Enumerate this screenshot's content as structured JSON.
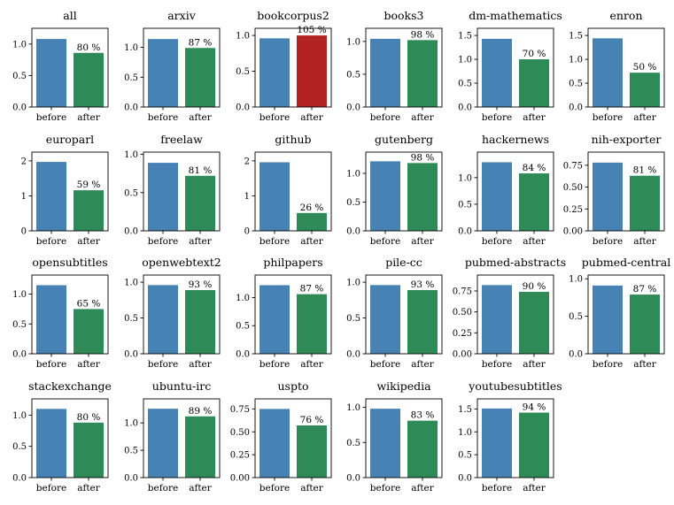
{
  "chart_data": [
    {
      "type": "bar",
      "title": "all",
      "categories": [
        "before",
        "after"
      ],
      "values": [
        1.08,
        0.86
      ],
      "label": "80 %",
      "ylim": [
        0,
        1.25
      ],
      "yticks": [
        0.0,
        0.5,
        1.0
      ],
      "after_color": "#2e8b57"
    },
    {
      "type": "bar",
      "title": "arxiv",
      "categories": [
        "before",
        "after"
      ],
      "values": [
        1.14,
        0.99
      ],
      "label": "87 %",
      "ylim": [
        0,
        1.32
      ],
      "yticks": [
        0.0,
        0.5,
        1.0
      ],
      "after_color": "#2e8b57"
    },
    {
      "type": "bar",
      "title": "bookcorpus2",
      "categories": [
        "before",
        "after"
      ],
      "values": [
        0.96,
        1.0
      ],
      "label": "105 %",
      "ylim": [
        0,
        1.1
      ],
      "yticks": [
        0.0,
        0.5,
        1.0
      ],
      "after_color": "#b22222"
    },
    {
      "type": "bar",
      "title": "books3",
      "categories": [
        "before",
        "after"
      ],
      "values": [
        1.04,
        1.02
      ],
      "label": "98 %",
      "ylim": [
        0,
        1.2
      ],
      "yticks": [
        0.0,
        0.5,
        1.0
      ],
      "after_color": "#2e8b57"
    },
    {
      "type": "bar",
      "title": "dm-mathematics",
      "categories": [
        "before",
        "after"
      ],
      "values": [
        1.43,
        1.0
      ],
      "label": "70 %",
      "ylim": [
        0,
        1.65
      ],
      "yticks": [
        0.0,
        0.5,
        1.0,
        1.5
      ],
      "after_color": "#2e8b57"
    },
    {
      "type": "bar",
      "title": "enron",
      "categories": [
        "before",
        "after"
      ],
      "values": [
        1.44,
        0.72
      ],
      "label": "50 %",
      "ylim": [
        0,
        1.65
      ],
      "yticks": [
        0.0,
        0.5,
        1.0,
        1.5
      ],
      "after_color": "#2e8b57"
    },
    {
      "type": "bar",
      "title": "europarl",
      "categories": [
        "before",
        "after"
      ],
      "values": [
        1.97,
        1.16
      ],
      "label": "59 %",
      "ylim": [
        0,
        2.25
      ],
      "yticks": [
        0,
        1,
        2
      ],
      "after_color": "#2e8b57"
    },
    {
      "type": "bar",
      "title": "freelaw",
      "categories": [
        "before",
        "after"
      ],
      "values": [
        0.89,
        0.72
      ],
      "label": "81 %",
      "ylim": [
        0,
        1.03
      ],
      "yticks": [
        0.0,
        0.5,
        1.0
      ],
      "after_color": "#2e8b57"
    },
    {
      "type": "bar",
      "title": "github",
      "categories": [
        "before",
        "after"
      ],
      "values": [
        1.96,
        0.51
      ],
      "label": "26 %",
      "ylim": [
        0,
        2.25
      ],
      "yticks": [
        0,
        1,
        2
      ],
      "after_color": "#2e8b57"
    },
    {
      "type": "bar",
      "title": "gutenberg",
      "categories": [
        "before",
        "after"
      ],
      "values": [
        1.21,
        1.18
      ],
      "label": "98 %",
      "ylim": [
        0,
        1.37
      ],
      "yticks": [
        0.0,
        0.5,
        1.0
      ],
      "after_color": "#2e8b57"
    },
    {
      "type": "bar",
      "title": "hackernews",
      "categories": [
        "before",
        "after"
      ],
      "values": [
        1.29,
        1.08
      ],
      "label": "84 %",
      "ylim": [
        0,
        1.48
      ],
      "yticks": [
        0.0,
        0.5,
        1.0
      ],
      "after_color": "#2e8b57"
    },
    {
      "type": "bar",
      "title": "nih-exporter",
      "categories": [
        "before",
        "after"
      ],
      "values": [
        0.78,
        0.63
      ],
      "label": "81 %",
      "ylim": [
        0,
        0.9
      ],
      "yticks": [
        0.0,
        0.25,
        0.5,
        0.75
      ],
      "after_color": "#2e8b57"
    },
    {
      "type": "bar",
      "title": "opensubtitles",
      "categories": [
        "before",
        "after"
      ],
      "values": [
        1.15,
        0.75
      ],
      "label": "65 %",
      "ylim": [
        0,
        1.32
      ],
      "yticks": [
        0.0,
        0.5,
        1.0
      ],
      "after_color": "#2e8b57"
    },
    {
      "type": "bar",
      "title": "openwebtext2",
      "categories": [
        "before",
        "after"
      ],
      "values": [
        0.96,
        0.89
      ],
      "label": "93 %",
      "ylim": [
        0,
        1.1
      ],
      "yticks": [
        0.0,
        0.5,
        1.0
      ],
      "after_color": "#2e8b57"
    },
    {
      "type": "bar",
      "title": "philpapers",
      "categories": [
        "before",
        "after"
      ],
      "values": [
        1.22,
        1.06
      ],
      "label": "87 %",
      "ylim": [
        0,
        1.4
      ],
      "yticks": [
        0.0,
        0.5,
        1.0
      ],
      "after_color": "#2e8b57"
    },
    {
      "type": "bar",
      "title": "pile-cc",
      "categories": [
        "before",
        "after"
      ],
      "values": [
        0.96,
        0.89
      ],
      "label": "93 %",
      "ylim": [
        0,
        1.1
      ],
      "yticks": [
        0.0,
        0.5,
        1.0
      ],
      "after_color": "#2e8b57"
    },
    {
      "type": "bar",
      "title": "pubmed-abstracts",
      "categories": [
        "before",
        "after"
      ],
      "values": [
        0.82,
        0.74
      ],
      "label": "90 %",
      "ylim": [
        0,
        0.94
      ],
      "yticks": [
        0.0,
        0.25,
        0.5,
        0.75
      ],
      "after_color": "#2e8b57"
    },
    {
      "type": "bar",
      "title": "pubmed-central",
      "categories": [
        "before",
        "after"
      ],
      "values": [
        0.91,
        0.79
      ],
      "label": "87 %",
      "ylim": [
        0,
        1.05
      ],
      "yticks": [
        0.0,
        0.5,
        1.0
      ],
      "after_color": "#2e8b57"
    },
    {
      "type": "bar",
      "title": "stackexchange",
      "categories": [
        "before",
        "after"
      ],
      "values": [
        1.1,
        0.88
      ],
      "label": "80 %",
      "ylim": [
        0,
        1.26
      ],
      "yticks": [
        0.0,
        0.5,
        1.0
      ],
      "after_color": "#2e8b57"
    },
    {
      "type": "bar",
      "title": "ubuntu-irc",
      "categories": [
        "before",
        "after"
      ],
      "values": [
        1.26,
        1.12
      ],
      "label": "89 %",
      "ylim": [
        0,
        1.44
      ],
      "yticks": [
        0.0,
        0.5,
        1.0
      ],
      "after_color": "#2e8b57"
    },
    {
      "type": "bar",
      "title": "uspto",
      "categories": [
        "before",
        "after"
      ],
      "values": [
        0.75,
        0.57
      ],
      "label": "76 %",
      "ylim": [
        0,
        0.86
      ],
      "yticks": [
        0.0,
        0.25,
        0.5,
        0.75
      ],
      "after_color": "#2e8b57"
    },
    {
      "type": "bar",
      "title": "wikipedia",
      "categories": [
        "before",
        "after"
      ],
      "values": [
        0.98,
        0.81
      ],
      "label": "83 %",
      "ylim": [
        0,
        1.12
      ],
      "yticks": [
        0.0,
        0.5,
        1.0
      ],
      "after_color": "#2e8b57"
    },
    {
      "type": "bar",
      "title": "youtubesubtitles",
      "categories": [
        "before",
        "after"
      ],
      "values": [
        1.51,
        1.42
      ],
      "label": "94 %",
      "ylim": [
        0,
        1.72
      ],
      "yticks": [
        0.0,
        0.5,
        1.0,
        1.5
      ],
      "after_color": "#2e8b57"
    }
  ],
  "before_color": "#4682b4"
}
